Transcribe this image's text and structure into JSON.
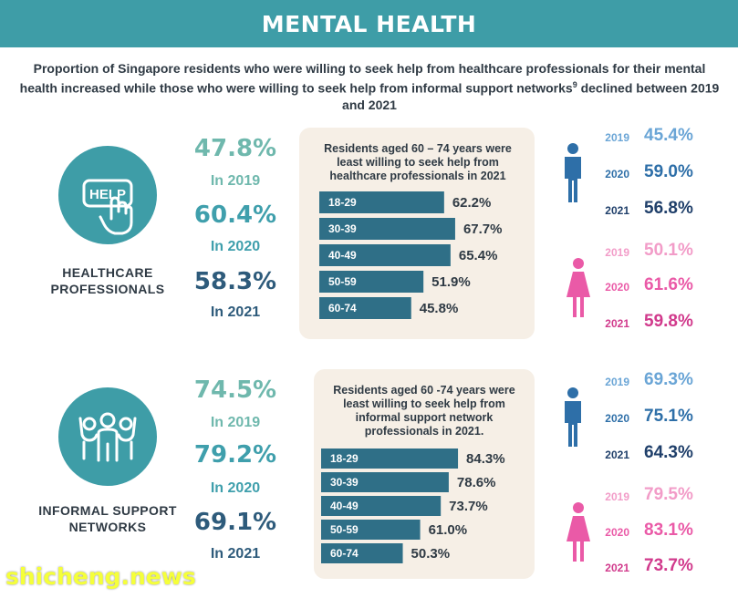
{
  "header": {
    "title": "MENTAL HEALTH"
  },
  "intro": {
    "text": "Proportion of Singapore residents who were willing to seek help from healthcare professionals for their mental health increased while those who were willing to seek help from informal support networks",
    "footnote": "9",
    "text_end": " declined between 2019 and 2021"
  },
  "colors": {
    "teal": "#3e9da7",
    "bar": "#2f6f87",
    "panel": "#f6efe6",
    "male": "#2e6fa8",
    "female": "#ea5aa7"
  },
  "healthcare": {
    "icon": "help-hand-icon",
    "icon_text": "HELP",
    "label_line1": "HEALTHCARE",
    "label_line2": "PROFESSIONALS",
    "years": [
      {
        "value": "47.8%",
        "label": "In 2019"
      },
      {
        "value": "60.4%",
        "label": "In 2020"
      },
      {
        "value": "58.3%",
        "label": "In 2021"
      }
    ],
    "panel_title": "Residents aged 60 – 74 years were least willing to seek help from healthcare professionals in 2021",
    "male": [
      {
        "year": "2019",
        "value": "45.4%"
      },
      {
        "year": "2020",
        "value": "59.0%"
      },
      {
        "year": "2021",
        "value": "56.8%"
      }
    ],
    "female": [
      {
        "year": "2019",
        "value": "50.1%"
      },
      {
        "year": "2020",
        "value": "61.6%"
      },
      {
        "year": "2021",
        "value": "59.8%"
      }
    ]
  },
  "informal": {
    "icon": "group-people-icon",
    "label_line1": "INFORMAL SUPPORT",
    "label_line2": "NETWORKS",
    "years": [
      {
        "value": "74.5%",
        "label": "In 2019"
      },
      {
        "value": "79.2%",
        "label": "In 2020"
      },
      {
        "value": "69.1%",
        "label": "In 2021"
      }
    ],
    "panel_title": "Residents aged 60 -74 years were least willing to seek help from informal support network professionals in 2021.",
    "male": [
      {
        "year": "2019",
        "value": "69.3%"
      },
      {
        "year": "2020",
        "value": "75.1%"
      },
      {
        "year": "2021",
        "value": "64.3%"
      }
    ],
    "female": [
      {
        "year": "2019",
        "value": "79.5%"
      },
      {
        "year": "2020",
        "value": "83.1%"
      },
      {
        "year": "2021",
        "value": "73.7%"
      }
    ]
  },
  "chart_data": [
    {
      "type": "bar",
      "title": "Residents aged 60 – 74 years were least willing to seek help from healthcare professionals in 2021",
      "categories": [
        "18-29",
        "30-39",
        "40-49",
        "50-59",
        "60-74"
      ],
      "values": [
        62.2,
        67.7,
        65.4,
        51.9,
        45.8
      ],
      "value_labels": [
        "62.2%",
        "67.7%",
        "65.4%",
        "51.9%",
        "45.8%"
      ]
    },
    {
      "type": "bar",
      "title": "Residents aged 60 -74 years were least willing to seek help from informal support network professionals in 2021.",
      "categories": [
        "18-29",
        "30-39",
        "40-49",
        "50-59",
        "60-74"
      ],
      "values": [
        84.3,
        78.6,
        73.7,
        61.0,
        50.3
      ],
      "value_labels": [
        "84.3%",
        "78.6%",
        "73.7%",
        "61.0%",
        "50.3%"
      ]
    }
  ],
  "watermark": "shicheng.news"
}
